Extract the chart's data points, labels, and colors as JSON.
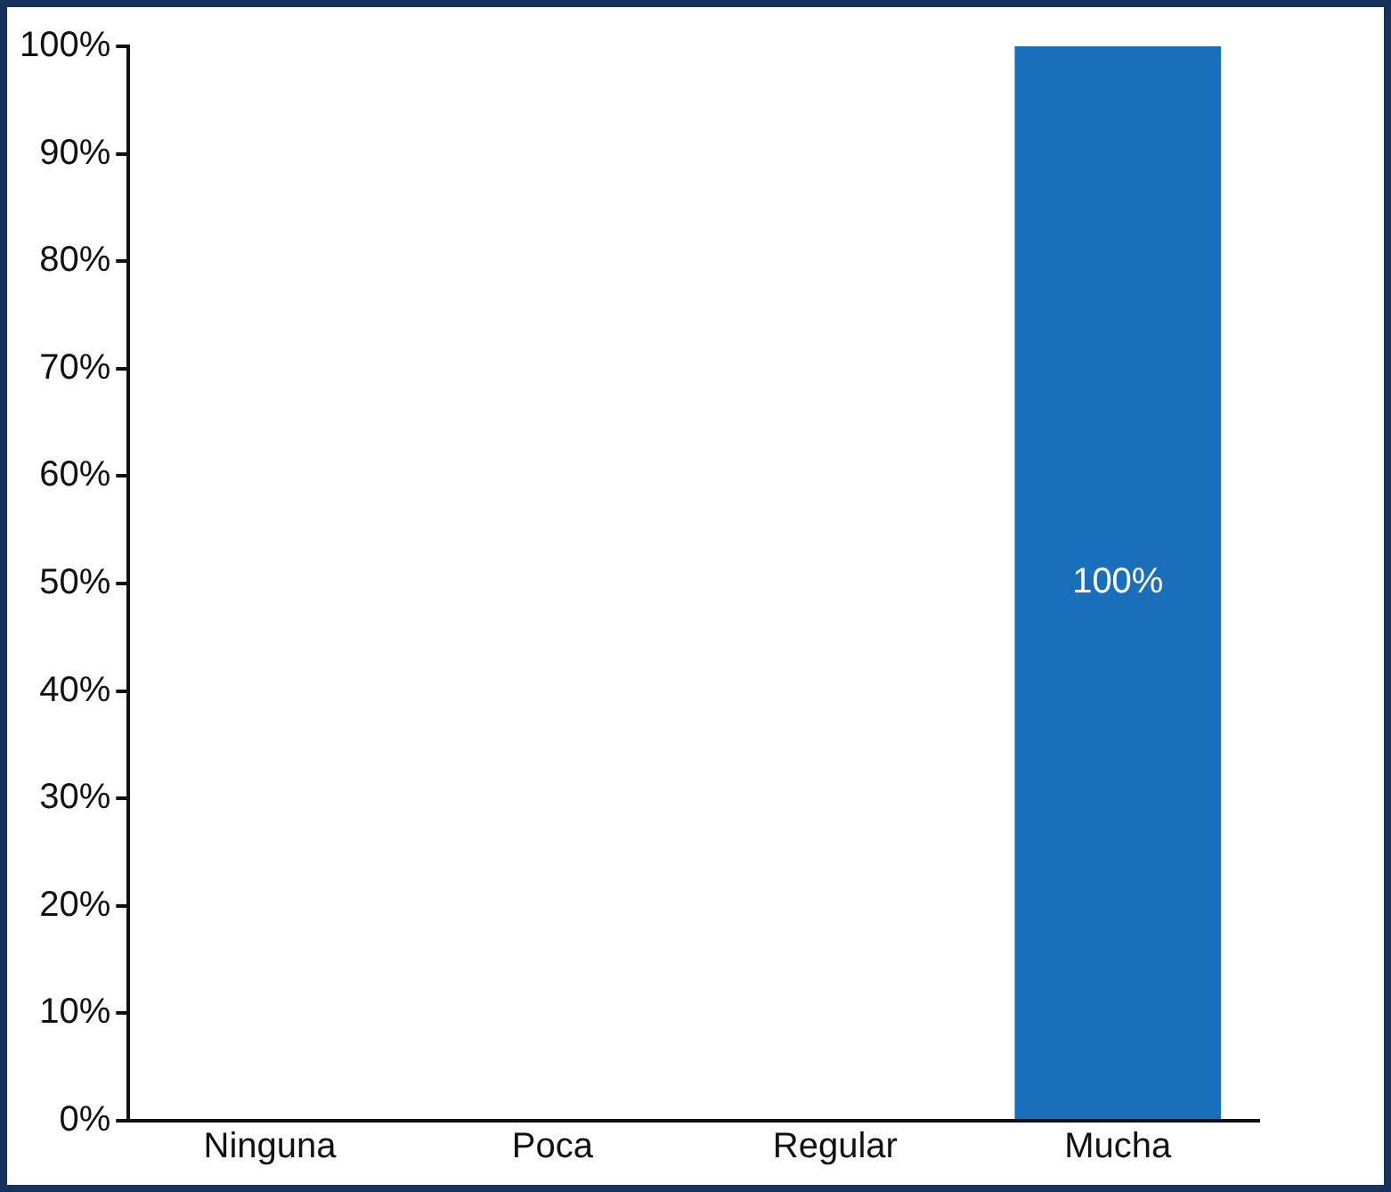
{
  "chart_data": {
    "type": "bar",
    "categories": [
      "Ninguna",
      "Poca",
      "Regular",
      "Mucha"
    ],
    "values": [
      0,
      0,
      0,
      100
    ],
    "color": "#1a6fbb",
    "value_labels": [
      null,
      null,
      null,
      "100%"
    ],
    "ylim": [
      0,
      100
    ],
    "yticks": [
      {
        "value": 0,
        "label": "0%"
      },
      {
        "value": 10,
        "label": "10%"
      },
      {
        "value": 20,
        "label": "20%"
      },
      {
        "value": 30,
        "label": "30%"
      },
      {
        "value": 40,
        "label": "40%"
      },
      {
        "value": 50,
        "label": "50%"
      },
      {
        "value": 60,
        "label": "60%"
      },
      {
        "value": 70,
        "label": "70%"
      },
      {
        "value": 80,
        "label": "80%"
      },
      {
        "value": 90,
        "label": "90%"
      },
      {
        "value": 100,
        "label": "100%"
      }
    ],
    "grid": false,
    "legend": false
  }
}
